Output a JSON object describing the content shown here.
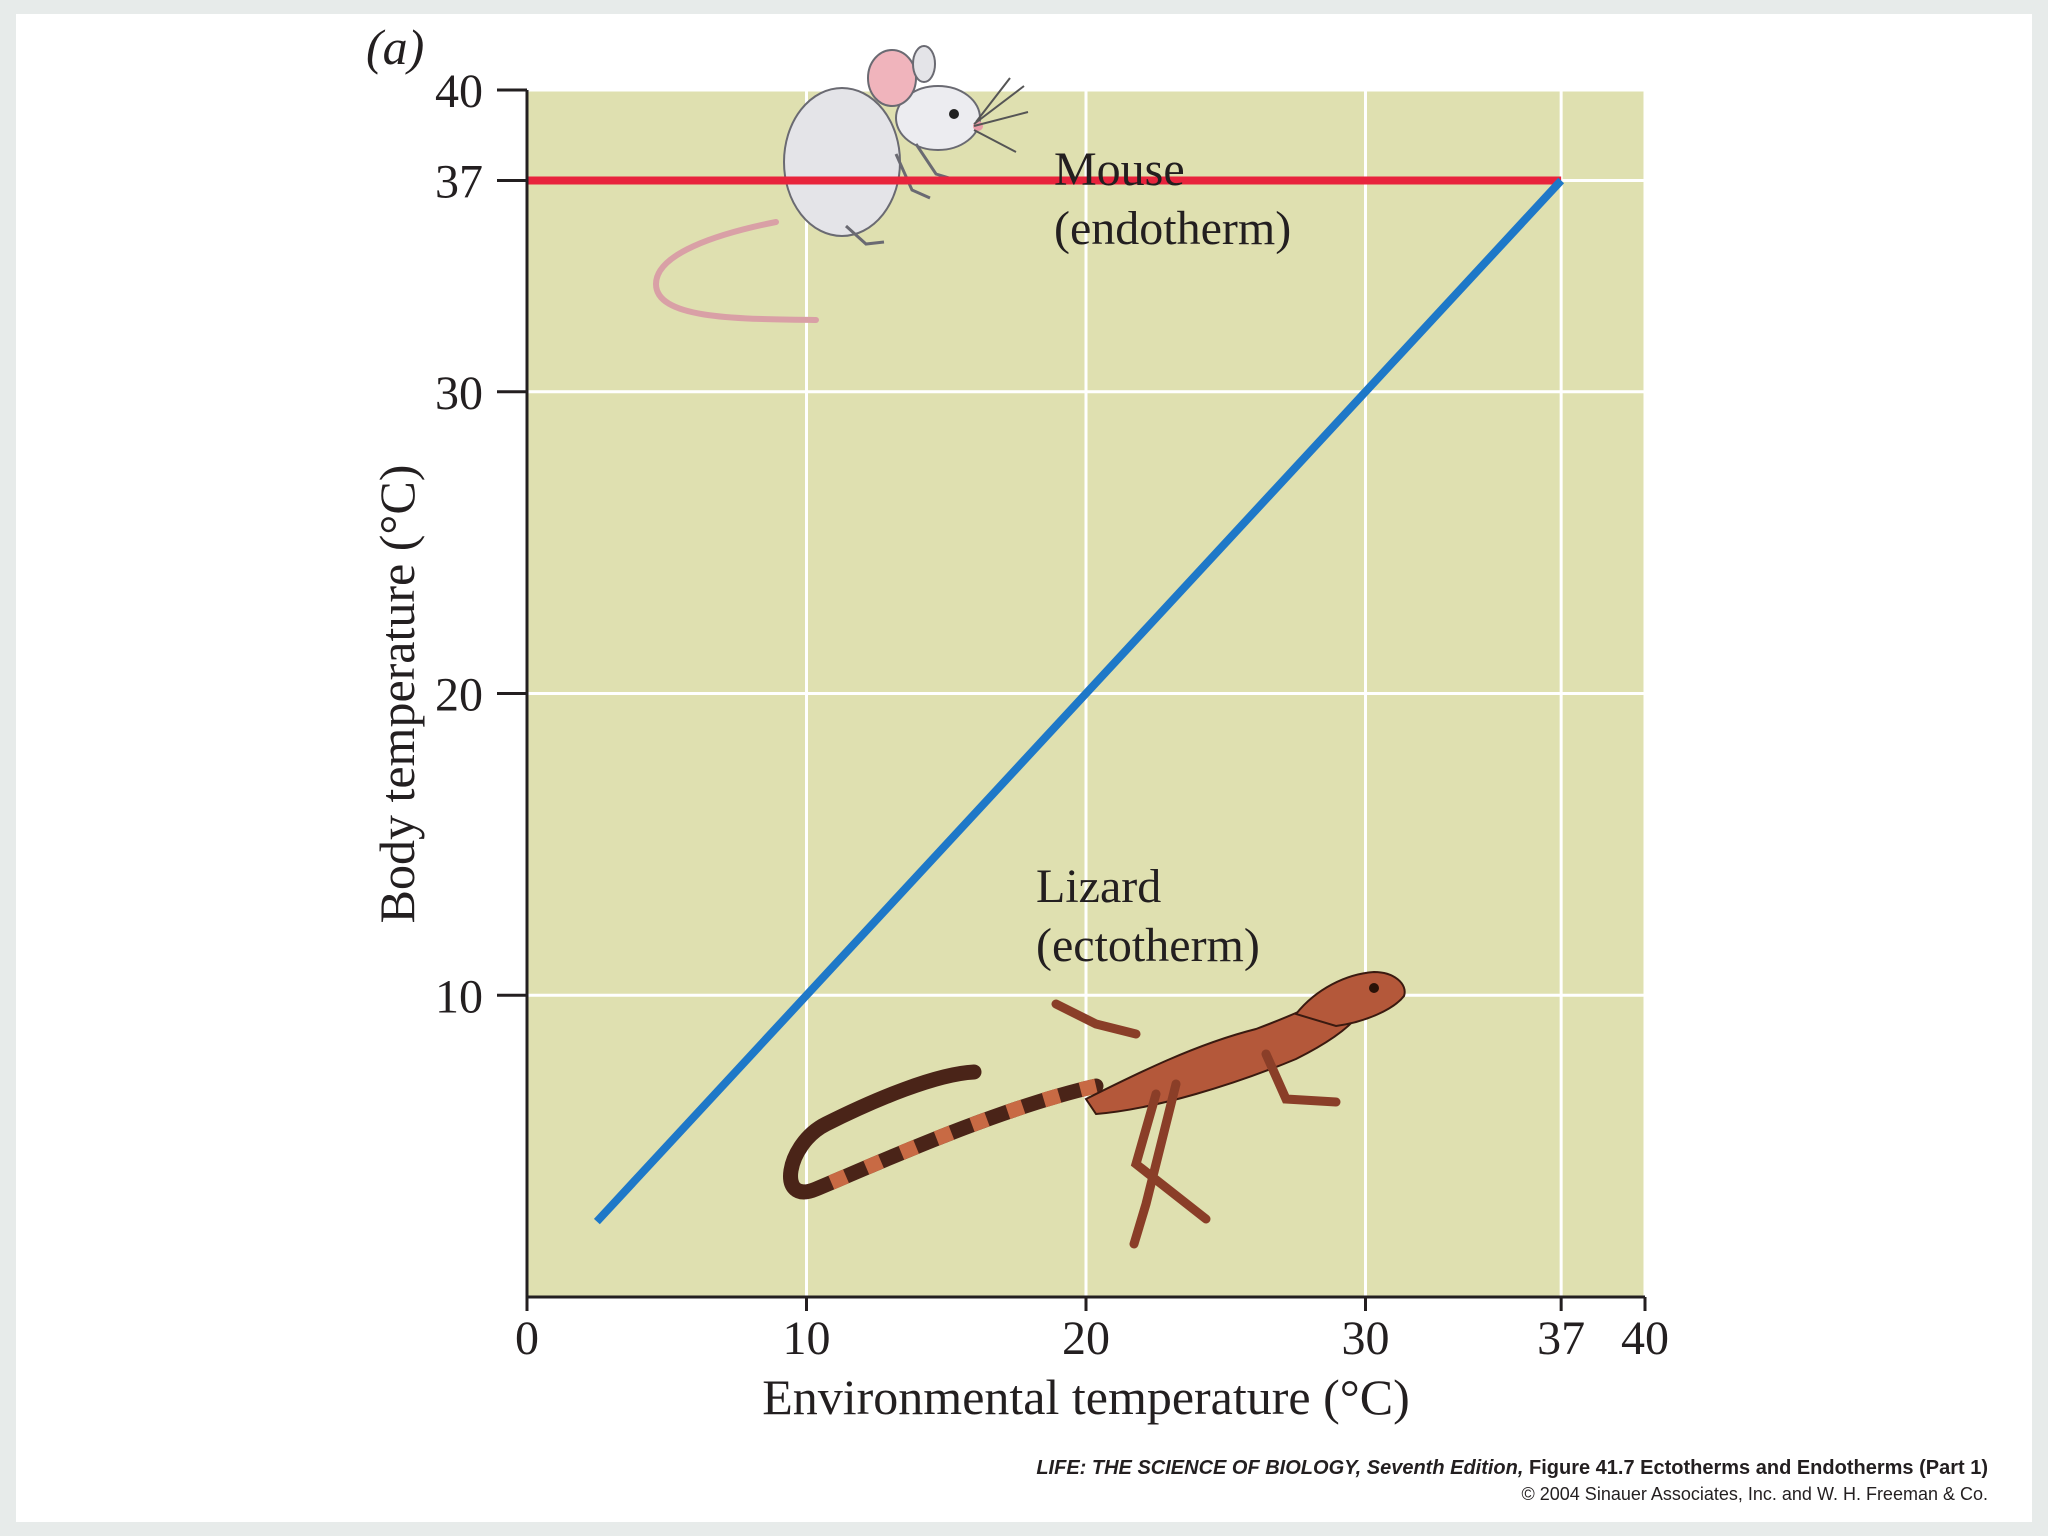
{
  "panel_label": "(a)",
  "chart_data": {
    "type": "line",
    "xlabel": "Environmental temperature (°C)",
    "ylabel": "Body temperature (°C)",
    "xlim": [
      0,
      40
    ],
    "ylim": [
      0,
      40
    ],
    "x_ticks": [
      0,
      10,
      20,
      30,
      37,
      40
    ],
    "y_ticks": [
      10,
      20,
      30,
      37,
      40
    ],
    "grid": true,
    "plot_background": "#dfe0b0",
    "gridline_color": "#ffffff",
    "series": [
      {
        "annotation_lines": [
          "Mouse",
          "(endotherm)"
        ],
        "color": "#e8243c",
        "x": [
          0,
          37
        ],
        "y": [
          37,
          37
        ]
      },
      {
        "annotation_lines": [
          "Lizard",
          "(ectotherm)"
        ],
        "color": "#1e78c8",
        "x": [
          2.5,
          37
        ],
        "y": [
          2.5,
          37
        ]
      }
    ],
    "illustrations": [
      "mouse-illustration",
      "lizard-illustration"
    ]
  },
  "credit": {
    "book_title": "LIFE: THE SCIENCE OF BIOLOGY,",
    "edition": " Seventh Edition,",
    "figure": " Figure 41.7 Ectotherms and Endotherms (Part 1)",
    "copyright": "© 2004 Sinauer Associates, Inc. and W. H. Freeman & Co."
  }
}
